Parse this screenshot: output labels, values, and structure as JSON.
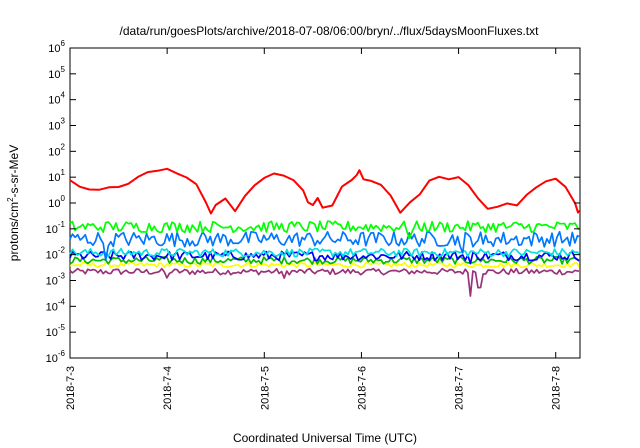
{
  "chart_data": {
    "type": "line",
    "title": "/data/run/goesPlots/archive/2018-07-08/06:00/bryn/../flux/5daysMoonFluxes.txt",
    "xlabel": "Coordinated Universal Time (UTC)",
    "ylabel": {
      "pre": "protons/cm",
      "sup": "2",
      "post": "-s-sr-MeV"
    },
    "x_scale": "time",
    "y_scale": "log",
    "xlim": [
      "2018-07-03T00:00",
      "2018-07-08T06:00"
    ],
    "ylim": [
      1e-06,
      1000000.0
    ],
    "grid": false,
    "legend": "none",
    "x_ticks": [
      {
        "label": "2018-7-3",
        "t": "2018-07-03"
      },
      {
        "label": "2018-7-4",
        "t": "2018-07-04"
      },
      {
        "label": "2018-7-5",
        "t": "2018-07-05"
      },
      {
        "label": "2018-7-6",
        "t": "2018-07-06"
      },
      {
        "label": "2018-7-7",
        "t": "2018-07-07"
      },
      {
        "label": "2018-7-8",
        "t": "2018-07-08"
      }
    ],
    "y_ticks": [
      {
        "base": "10",
        "exp": "-6",
        "value": 1e-06
      },
      {
        "base": "10",
        "exp": "-5",
        "value": 1e-05
      },
      {
        "base": "10",
        "exp": "-4",
        "value": 0.0001
      },
      {
        "base": "10",
        "exp": "-3",
        "value": 0.001
      },
      {
        "base": "10",
        "exp": "-2",
        "value": 0.01
      },
      {
        "base": "10",
        "exp": "-1",
        "value": 0.1
      },
      {
        "base": "10",
        "exp": "0",
        "value": 1
      },
      {
        "base": "10",
        "exp": "1",
        "value": 10.0
      },
      {
        "base": "10",
        "exp": "2",
        "value": 100.0
      },
      {
        "base": "10",
        "exp": "3",
        "value": 1000.0
      },
      {
        "base": "10",
        "exp": "4",
        "value": 10000.0
      },
      {
        "base": "10",
        "exp": "5",
        "value": 100000.0
      },
      {
        "base": "10",
        "exp": "6",
        "value": 1000000.0
      }
    ],
    "series": [
      {
        "color": "#ff0000",
        "base": 1,
        "noise": 0.08,
        "points": [
          [
            "2018-07-03T00:00",
            8
          ],
          [
            "2018-07-03T02:24",
            4
          ],
          [
            "2018-07-03T04:48",
            3.5
          ],
          [
            "2018-07-03T07:12",
            3
          ],
          [
            "2018-07-03T09:36",
            4
          ],
          [
            "2018-07-03T12:00",
            4
          ],
          [
            "2018-07-03T14:24",
            6
          ],
          [
            "2018-07-03T16:48",
            10
          ],
          [
            "2018-07-03T19:12",
            15
          ],
          [
            "2018-07-03T21:36",
            18
          ],
          [
            "2018-07-04T00:00",
            20
          ],
          [
            "2018-07-04T02:24",
            15
          ],
          [
            "2018-07-04T04:48",
            10
          ],
          [
            "2018-07-04T07:12",
            5
          ],
          [
            "2018-07-04T09:36",
            1
          ],
          [
            "2018-07-04T10:48",
            0.4
          ],
          [
            "2018-07-04T12:00",
            0.8
          ],
          [
            "2018-07-04T14:24",
            1.5
          ],
          [
            "2018-07-04T16:48",
            0.5
          ],
          [
            "2018-07-04T19:12",
            2
          ],
          [
            "2018-07-04T21:36",
            5
          ],
          [
            "2018-07-05T00:00",
            10
          ],
          [
            "2018-07-05T02:24",
            14
          ],
          [
            "2018-07-05T04:48",
            12
          ],
          [
            "2018-07-05T07:12",
            8
          ],
          [
            "2018-07-05T09:36",
            3
          ],
          [
            "2018-07-05T10:48",
            1
          ],
          [
            "2018-07-05T12:00",
            0.8
          ],
          [
            "2018-07-05T13:12",
            1.5
          ],
          [
            "2018-07-05T14:24",
            0.7
          ],
          [
            "2018-07-05T16:48",
            0.8
          ],
          [
            "2018-07-05T19:12",
            4
          ],
          [
            "2018-07-05T21:36",
            8
          ],
          [
            "2018-07-05T22:48",
            12
          ],
          [
            "2018-07-05T23:30",
            20
          ],
          [
            "2018-07-06T00:30",
            8
          ],
          [
            "2018-07-06T02:24",
            7
          ],
          [
            "2018-07-06T04:48",
            5
          ],
          [
            "2018-07-06T07:12",
            2
          ],
          [
            "2018-07-06T09:36",
            0.4
          ],
          [
            "2018-07-06T12:00",
            1
          ],
          [
            "2018-07-06T14:24",
            2
          ],
          [
            "2018-07-06T16:48",
            7
          ],
          [
            "2018-07-06T19:12",
            10
          ],
          [
            "2018-07-06T21:36",
            8
          ],
          [
            "2018-07-07T00:00",
            10
          ],
          [
            "2018-07-07T02:24",
            5
          ],
          [
            "2018-07-07T04:48",
            1.5
          ],
          [
            "2018-07-07T07:12",
            0.6
          ],
          [
            "2018-07-07T09:36",
            0.7
          ],
          [
            "2018-07-07T12:00",
            1
          ],
          [
            "2018-07-07T14:24",
            0.8
          ],
          [
            "2018-07-07T16:48",
            2
          ],
          [
            "2018-07-07T19:12",
            4
          ],
          [
            "2018-07-07T21:36",
            7
          ],
          [
            "2018-07-08T00:00",
            9
          ],
          [
            "2018-07-08T02:24",
            4
          ],
          [
            "2018-07-08T04:48",
            1
          ],
          [
            "2018-07-08T05:30",
            0.4
          ],
          [
            "2018-07-08T06:00",
            0.5
          ]
        ]
      },
      {
        "color": "#00ff00",
        "base": 0.12,
        "noise": 0.22,
        "dips": [
          [
            "2018-07-06T12:00",
            0.5
          ]
        ]
      },
      {
        "color": "#0077ff",
        "base": 0.04,
        "noise": 0.3,
        "dips": [
          [
            "2018-07-03T09:00",
            0.3
          ],
          [
            "2018-07-07T01:00",
            0.25
          ],
          [
            "2018-07-07T06:00",
            0.5
          ]
        ]
      },
      {
        "color": "#00e0e0",
        "base": 0.012,
        "noise": 0.16
      },
      {
        "color": "#0000ff",
        "base": 0.009,
        "noise": 0.18,
        "dips": [
          [
            "2018-07-07T03:00",
            0.5
          ]
        ]
      },
      {
        "color": "#00bb00",
        "base": 0.006,
        "noise": 0.14
      },
      {
        "color": "#ffff00",
        "base": 0.004,
        "noise": 0.1
      },
      {
        "color": "#993377",
        "base": 0.0022,
        "noise": 0.12,
        "dips": [
          [
            "2018-07-04T00:00",
            0.5
          ],
          [
            "2018-07-05T05:00",
            0.45
          ],
          [
            "2018-07-07T03:00",
            0.15
          ],
          [
            "2018-07-07T05:00",
            0.3
          ]
        ]
      }
    ]
  }
}
